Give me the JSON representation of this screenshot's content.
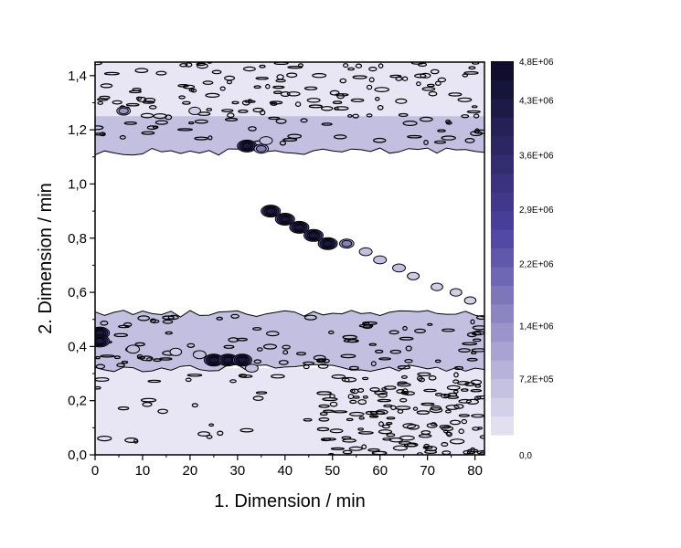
{
  "chart_data": {
    "type": "heatmap",
    "xlabel": "1. Dimension / min",
    "ylabel": "2. Dimension / min",
    "xlim": [
      0,
      82
    ],
    "ylim": [
      0,
      1.45
    ],
    "x_ticks": [
      0,
      10,
      20,
      30,
      40,
      50,
      60,
      70,
      80
    ],
    "y_ticks": [
      0.0,
      0.2,
      0.4,
      0.6,
      0.8,
      1.0,
      1.2,
      1.4
    ],
    "y_tick_labels": [
      "0,0",
      "0,2",
      "0,4",
      "0,6",
      "0,8",
      "1,0",
      "1,2",
      "1,4"
    ],
    "colorbar": {
      "min": 0,
      "max": 4800000,
      "levels": 20,
      "color_low": "#e8e6f4",
      "color_high": "#0d0b25",
      "labels": [
        {
          "value": 4800000,
          "text": "4,8E+06"
        },
        {
          "value": 4300000,
          "text": "4,3E+06"
        },
        {
          "value": 3600000,
          "text": "3,6E+06"
        },
        {
          "value": 2900000,
          "text": "2,9E+06"
        },
        {
          "value": 2200000,
          "text": "2,2E+06"
        },
        {
          "value": 1400000,
          "text": "1,4E+06"
        },
        {
          "value": 720000,
          "text": "7,2E+05"
        },
        {
          "value": 0,
          "text": "0,0"
        }
      ]
    },
    "background_bands": [
      {
        "y_range": [
          0.0,
          0.32
        ],
        "x_range": [
          0,
          82
        ],
        "level": "low"
      },
      {
        "y_range": [
          0.32,
          0.52
        ],
        "x_range": [
          0,
          82
        ],
        "level": "medium"
      },
      {
        "y_range": [
          1.12,
          1.3
        ],
        "x_range": [
          0,
          82
        ],
        "level": "medium"
      },
      {
        "y_range": [
          1.25,
          1.45
        ],
        "x_range": [
          0,
          82
        ],
        "level": "low"
      }
    ],
    "peaks": [
      {
        "x": 1,
        "y": 0.45,
        "intensity": 4800000
      },
      {
        "x": 1,
        "y": 0.42,
        "intensity": 4800000
      },
      {
        "x": 6,
        "y": 1.27,
        "intensity": 1800000
      },
      {
        "x": 8,
        "y": 0.39,
        "intensity": 1400000
      },
      {
        "x": 17,
        "y": 0.38,
        "intensity": 900000
      },
      {
        "x": 21,
        "y": 1.27,
        "intensity": 900000
      },
      {
        "x": 22,
        "y": 0.37,
        "intensity": 1400000
      },
      {
        "x": 25,
        "y": 0.35,
        "intensity": 4800000
      },
      {
        "x": 28,
        "y": 0.35,
        "intensity": 4800000
      },
      {
        "x": 31,
        "y": 0.35,
        "intensity": 4800000
      },
      {
        "x": 33,
        "y": 0.32,
        "intensity": 1400000
      },
      {
        "x": 32,
        "y": 1.14,
        "intensity": 4800000
      },
      {
        "x": 35,
        "y": 1.13,
        "intensity": 2200000
      },
      {
        "x": 36,
        "y": 1.16,
        "intensity": 1400000
      },
      {
        "x": 37,
        "y": 0.9,
        "intensity": 4800000
      },
      {
        "x": 40,
        "y": 0.87,
        "intensity": 4800000
      },
      {
        "x": 43,
        "y": 0.84,
        "intensity": 4800000
      },
      {
        "x": 46,
        "y": 0.81,
        "intensity": 4800000
      },
      {
        "x": 49,
        "y": 0.78,
        "intensity": 4800000
      },
      {
        "x": 53,
        "y": 0.78,
        "intensity": 2200000
      },
      {
        "x": 57,
        "y": 0.75,
        "intensity": 1400000
      },
      {
        "x": 60,
        "y": 0.72,
        "intensity": 1400000
      },
      {
        "x": 64,
        "y": 0.69,
        "intensity": 1400000
      },
      {
        "x": 67,
        "y": 0.66,
        "intensity": 1000000
      },
      {
        "x": 72,
        "y": 0.62,
        "intensity": 900000
      },
      {
        "x": 76,
        "y": 0.6,
        "intensity": 900000
      },
      {
        "x": 79,
        "y": 0.57,
        "intensity": 800000
      }
    ]
  }
}
